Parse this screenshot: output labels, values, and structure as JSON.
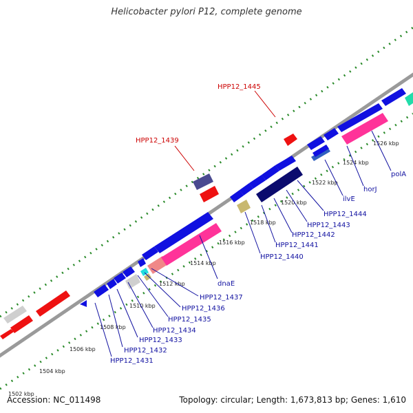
{
  "title": "Helicobacter pylori P12, complete genome",
  "footer": {
    "accession": "Accession: NC_011498",
    "summary": "Topology: circular; Length: 1,673,813 bp; Genes: 1,610"
  },
  "colors": {
    "backbone": "#9a9a9a",
    "ticks": "#2a8a2a",
    "cds": "#1010e0",
    "rna": "#ff3399",
    "red_gene": "#ee1111",
    "navy_gene": "#0b0b6e",
    "grey_gene": "#cfcfcf",
    "label_blue": "#1010a0",
    "label_red": "#cc0000"
  },
  "kbp_labels": [
    {
      "text": "1502 kbp",
      "pos": 0
    },
    {
      "text": "1504 kbp",
      "pos": 1
    },
    {
      "text": "1506 kbp",
      "pos": 2
    },
    {
      "text": "1508 kbp",
      "pos": 3
    },
    {
      "text": "1510 kbp",
      "pos": 4
    },
    {
      "text": "1512 kbp",
      "pos": 5
    },
    {
      "text": "1514 kbp",
      "pos": 6
    },
    {
      "text": "1516 kbp",
      "pos": 7
    },
    {
      "text": "1518 kbp",
      "pos": 8
    },
    {
      "text": "1520 kbp",
      "pos": 9
    },
    {
      "text": "1522 kbp",
      "pos": 10
    },
    {
      "text": "1524 kbp",
      "pos": 11
    },
    {
      "text": "1526 kbp",
      "pos": 12
    }
  ],
  "gene_labels": [
    {
      "text": "HPP12_1431"
    },
    {
      "text": "HPP12_1432"
    },
    {
      "text": "HPP12_1433"
    },
    {
      "text": "HPP12_1434"
    },
    {
      "text": "HPP12_1435"
    },
    {
      "text": "HPP12_1436"
    },
    {
      "text": "HPP12_1437"
    },
    {
      "text": "dnaE"
    },
    {
      "text": "HPP12_1440"
    },
    {
      "text": "HPP12_1441"
    },
    {
      "text": "HPP12_1442"
    },
    {
      "text": "HPP12_1443"
    },
    {
      "text": "HPP12_1444"
    },
    {
      "text": "ilvE"
    },
    {
      "text": "horJ"
    },
    {
      "text": "polA"
    },
    {
      "text": "HPP12_1439"
    },
    {
      "text": "HPP12_1445"
    }
  ]
}
